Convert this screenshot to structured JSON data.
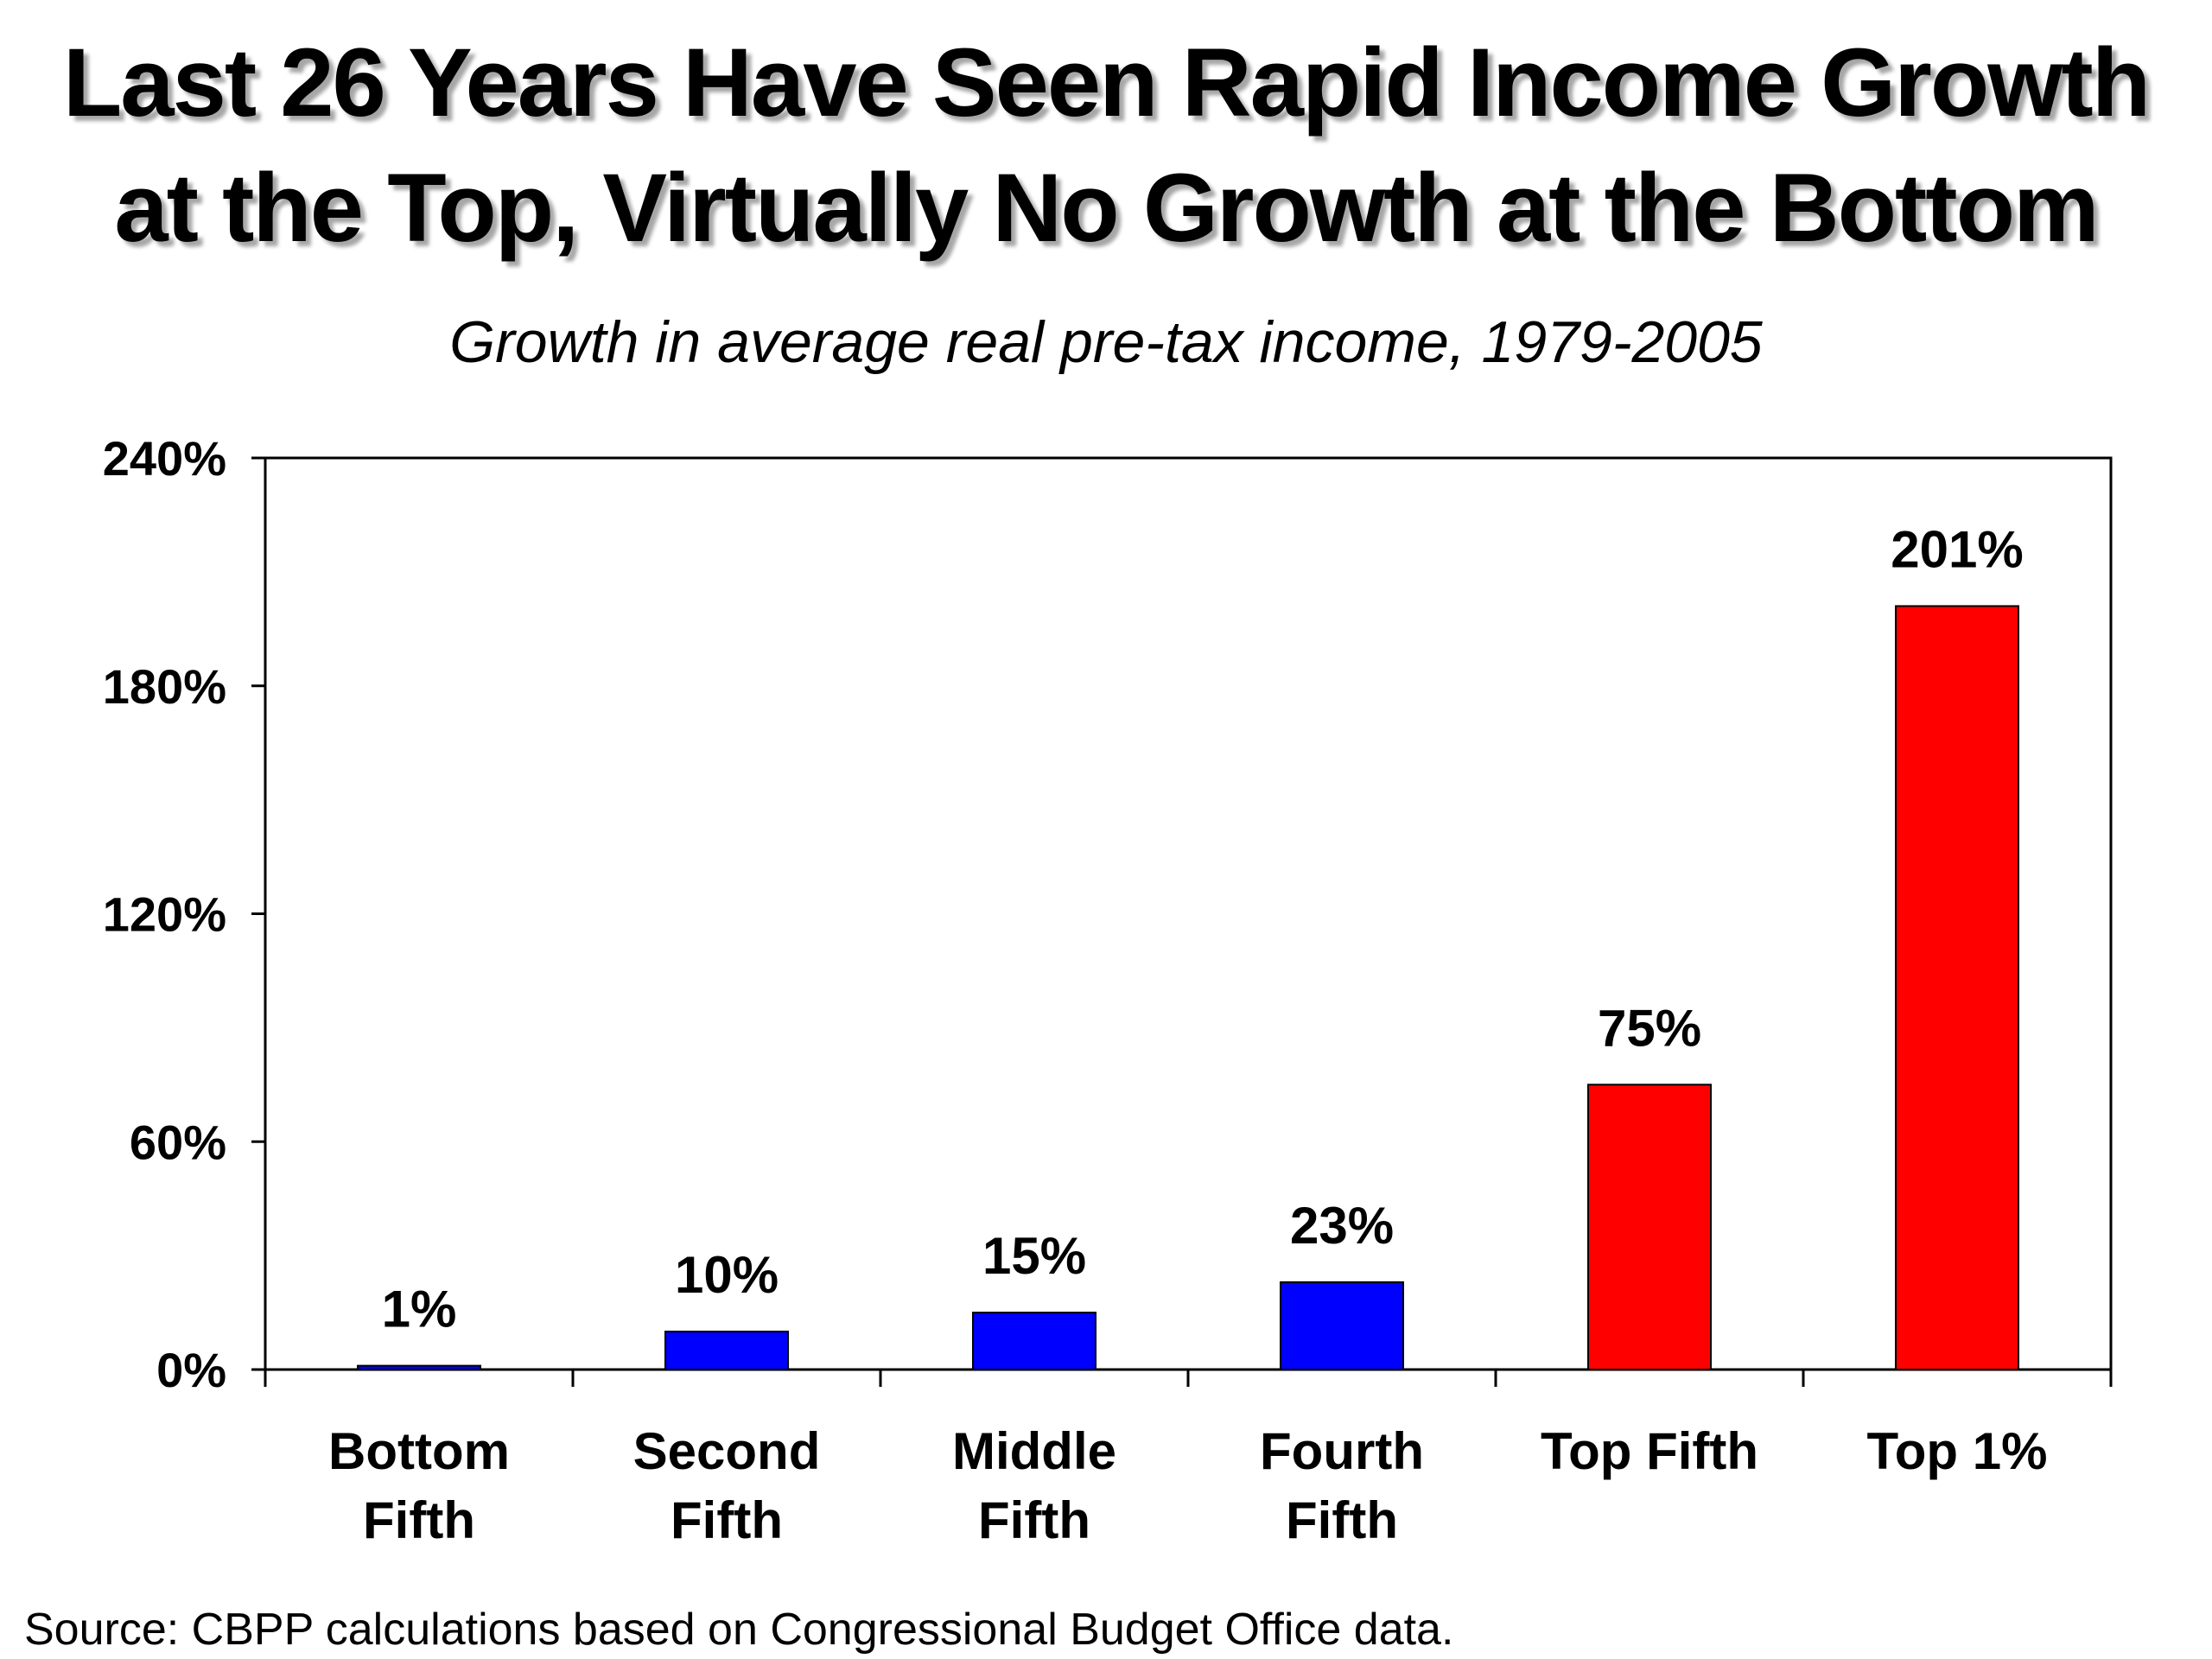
{
  "title_line1": "Last 26 Years Have Seen Rapid Income Growth",
  "title_line2": "at the Top, Virtually No Growth at the Bottom",
  "subtitle": "Growth in average real pre-tax income, 1979-2005",
  "source": "Source: CBPP calculations based on Congressional Budget Office data.",
  "colors": {
    "bottom_groups": "#0000ff",
    "top_groups": "#ff0000",
    "axis": "#000000"
  },
  "chart_data": {
    "type": "bar",
    "title": "Last 26 Years Have Seen Rapid Income Growth at the Top, Virtually No Growth at the Bottom",
    "subtitle": "Growth in average real pre-tax income, 1979-2005",
    "categories": [
      [
        "Bottom",
        "Fifth"
      ],
      [
        "Second",
        "Fifth"
      ],
      [
        "Middle",
        "Fifth"
      ],
      [
        "Fourth",
        "Fifth"
      ],
      [
        "Top Fifth"
      ],
      [
        "Top 1%"
      ]
    ],
    "values": [
      1,
      10,
      15,
      23,
      75,
      201
    ],
    "value_labels": [
      "1%",
      "10%",
      "15%",
      "23%",
      "75%",
      "201%"
    ],
    "bar_colors": [
      "#0000ff",
      "#0000ff",
      "#0000ff",
      "#0000ff",
      "#ff0000",
      "#ff0000"
    ],
    "ylim": [
      0,
      240
    ],
    "yticks": [
      0,
      60,
      120,
      180,
      240
    ],
    "ytick_labels": [
      "0%",
      "60%",
      "120%",
      "180%",
      "240%"
    ],
    "xlabel": "",
    "ylabel": "",
    "grid": false,
    "legend": "none"
  }
}
